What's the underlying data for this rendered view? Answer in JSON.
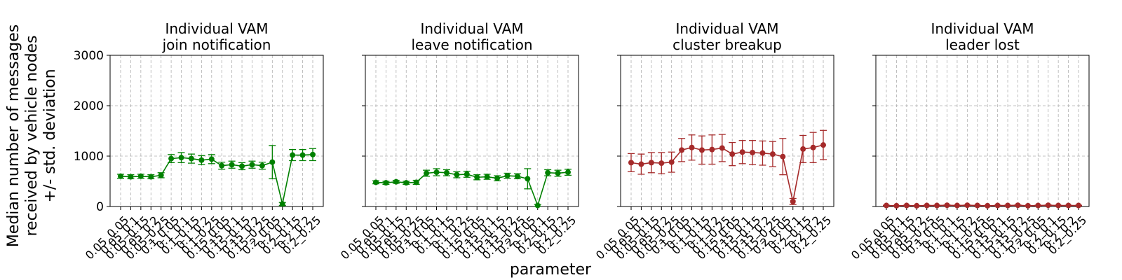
{
  "figure": {
    "ylabel_lines": [
      "Median number of messages",
      "received by vehicle nodes",
      "+/- std. deviation"
    ],
    "xlabel": "parameter"
  },
  "chart_data": [
    {
      "type": "line",
      "title_lines": [
        "Individual VAM",
        "join notification"
      ],
      "color": "#008000",
      "ylim": [
        0,
        3000
      ],
      "yticks": [
        0,
        1000,
        2000,
        3000
      ],
      "grid": true,
      "categories": [
        "0.05_0.05",
        "0.05_0.1",
        "0.05_0.15",
        "0.05_0.2",
        "0.05_0.25",
        "0.1_0.05",
        "0.1_0.1",
        "0.1_0.15",
        "0.1_0.2",
        "0.1_0.25",
        "0.15_0.05",
        "0.15_0.1",
        "0.15_0.15",
        "0.15_0.2",
        "0.15_0.25",
        "0.2_0.05",
        "0.2_0.1",
        "0.2_0.15",
        "0.2_0.2",
        "0.2_0.25"
      ],
      "values": [
        600,
        590,
        600,
        590,
        620,
        950,
        970,
        950,
        920,
        940,
        810,
        830,
        800,
        830,
        810,
        880,
        50,
        1020,
        1020,
        1030
      ],
      "errors": [
        40,
        40,
        40,
        40,
        50,
        80,
        100,
        90,
        90,
        90,
        70,
        70,
        70,
        70,
        70,
        330,
        30,
        110,
        110,
        120
      ]
    },
    {
      "type": "line",
      "title_lines": [
        "Individual VAM",
        "leave notification"
      ],
      "color": "#008000",
      "ylim": [
        0,
        3000
      ],
      "yticks": [
        0,
        1000,
        2000,
        3000
      ],
      "grid": true,
      "categories": [
        "0.05_0.05",
        "0.05_0.1",
        "0.05_0.15",
        "0.05_0.2",
        "0.05_0.25",
        "0.1_0.05",
        "0.1_0.1",
        "0.1_0.15",
        "0.1_0.2",
        "0.1_0.25",
        "0.15_0.05",
        "0.15_0.1",
        "0.15_0.15",
        "0.15_0.2",
        "0.15_0.25",
        "0.2_0.05",
        "0.2_0.1",
        "0.2_0.15",
        "0.2_0.2",
        "0.2_0.25"
      ],
      "values": [
        480,
        470,
        490,
        470,
        480,
        660,
        680,
        670,
        630,
        640,
        580,
        590,
        560,
        610,
        600,
        550,
        20,
        670,
        660,
        680
      ],
      "errors": [
        30,
        30,
        30,
        30,
        40,
        60,
        70,
        60,
        60,
        60,
        50,
        50,
        50,
        50,
        50,
        200,
        20,
        60,
        60,
        60
      ]
    },
    {
      "type": "line",
      "title_lines": [
        "Individual VAM",
        "cluster breakup"
      ],
      "color": "#a52a2a",
      "ylim": [
        0,
        3000
      ],
      "yticks": [
        0,
        1000,
        2000,
        3000
      ],
      "grid": true,
      "categories": [
        "0.05_0.05",
        "0.05_0.1",
        "0.05_0.15",
        "0.05_0.2",
        "0.05_0.25",
        "0.1_0.05",
        "0.1_0.1",
        "0.1_0.15",
        "0.1_0.2",
        "0.1_0.25",
        "0.15_0.05",
        "0.15_0.1",
        "0.15_0.15",
        "0.15_0.2",
        "0.15_0.25",
        "0.2_0.05",
        "0.2_0.1",
        "0.2_0.15",
        "0.2_0.2",
        "0.2_0.25"
      ],
      "values": [
        870,
        840,
        870,
        860,
        880,
        1120,
        1170,
        1120,
        1130,
        1160,
        1040,
        1080,
        1070,
        1060,
        1040,
        990,
        100,
        1140,
        1170,
        1220
      ],
      "errors": [
        180,
        200,
        200,
        210,
        200,
        230,
        250,
        280,
        290,
        270,
        230,
        230,
        240,
        240,
        250,
        360,
        60,
        270,
        300,
        290
      ]
    },
    {
      "type": "line",
      "title_lines": [
        "Individual VAM",
        "leader lost"
      ],
      "color": "#a52a2a",
      "ylim": [
        0,
        3000
      ],
      "yticks": [
        0,
        1000,
        2000,
        3000
      ],
      "grid": true,
      "categories": [
        "0.05_0.05",
        "0.05_0.1",
        "0.05_0.15",
        "0.05_0.2",
        "0.05_0.25",
        "0.1_0.05",
        "0.1_0.1",
        "0.1_0.15",
        "0.1_0.2",
        "0.1_0.25",
        "0.15_0.05",
        "0.15_0.1",
        "0.15_0.15",
        "0.15_0.2",
        "0.15_0.25",
        "0.2_0.05",
        "0.2_0.1",
        "0.2_0.15",
        "0.2_0.2",
        "0.2_0.25"
      ],
      "values": [
        20,
        15,
        20,
        15,
        20,
        20,
        25,
        20,
        25,
        20,
        15,
        20,
        20,
        25,
        15,
        20,
        25,
        20,
        20,
        20
      ],
      "errors": [
        5,
        5,
        5,
        5,
        5,
        5,
        5,
        5,
        5,
        5,
        5,
        5,
        5,
        5,
        5,
        5,
        5,
        5,
        5,
        5
      ]
    }
  ]
}
